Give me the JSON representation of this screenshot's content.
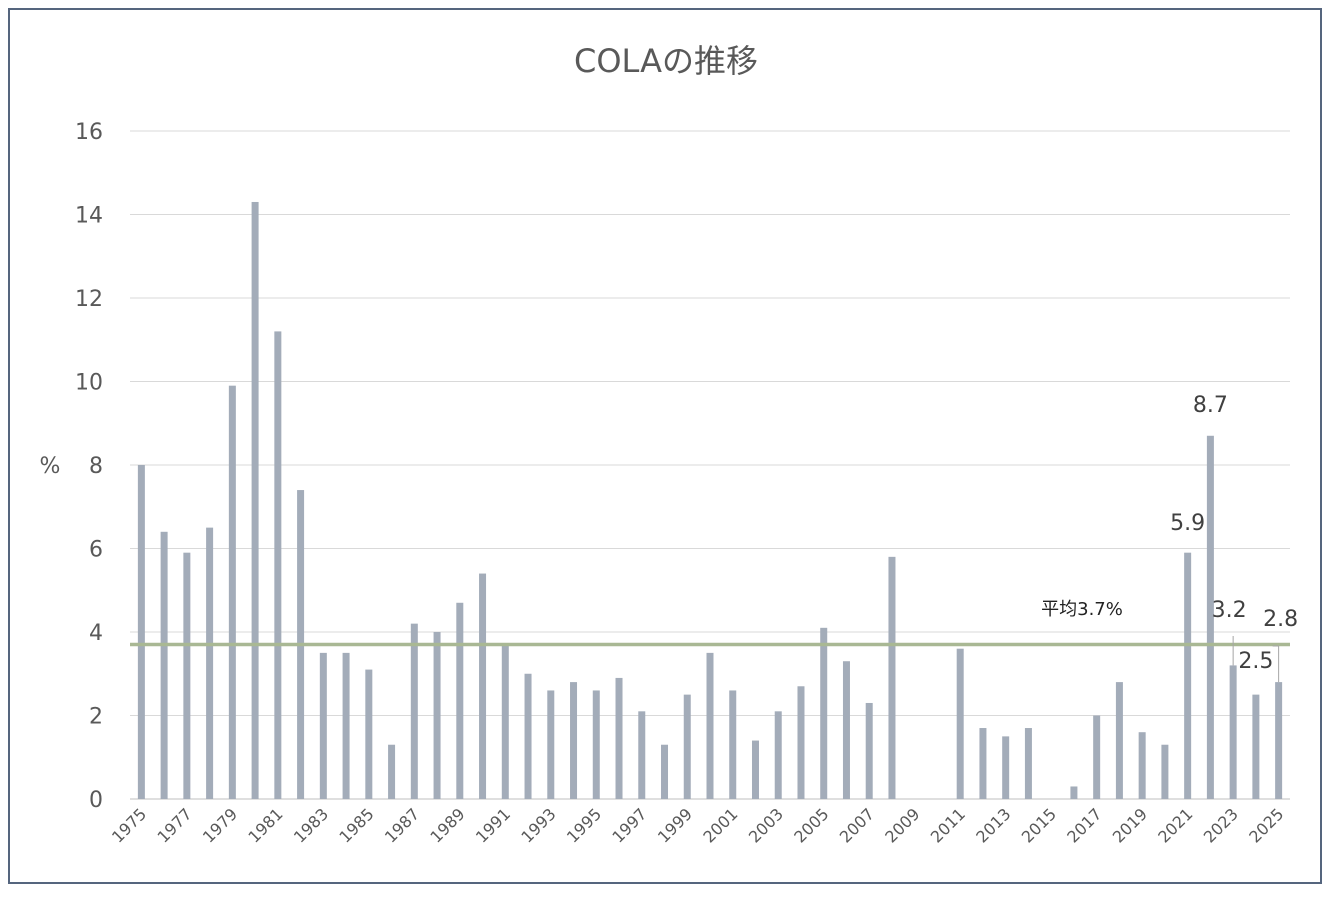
{
  "chart_data": {
    "type": "bar",
    "title": "COLAの推移",
    "ylabel": "%",
    "xlabel": "",
    "ylim": [
      0,
      16
    ],
    "yticks": [
      0,
      2,
      4,
      6,
      8,
      10,
      12,
      14,
      16
    ],
    "grid": true,
    "bar_color": "#a3acb9",
    "average_line": {
      "value": 3.7,
      "label": "平均3.7%",
      "color": "#a9b894"
    },
    "categories": [
      "1975",
      "1976",
      "1977",
      "1978",
      "1979",
      "1980",
      "1981",
      "1982",
      "1983",
      "1984",
      "1985",
      "1986",
      "1987",
      "1988",
      "1989",
      "1990",
      "1991",
      "1992",
      "1993",
      "1994",
      "1995",
      "1996",
      "1997",
      "1998",
      "1999",
      "2000",
      "2001",
      "2002",
      "2003",
      "2004",
      "2005",
      "2006",
      "2007",
      "2008",
      "2009",
      "2010",
      "2011",
      "2012",
      "2013",
      "2014",
      "2015",
      "2016",
      "2017",
      "2018",
      "2019",
      "2020",
      "2021",
      "2022",
      "2023",
      "2024",
      "2025"
    ],
    "tick_labels": [
      "1975",
      "1977",
      "1979",
      "1981",
      "1983",
      "1985",
      "1987",
      "1989",
      "1991",
      "1993",
      "1995",
      "1997",
      "1999",
      "2001",
      "2003",
      "2005",
      "2007",
      "2009",
      "2011",
      "2013",
      "2015",
      "2017",
      "2019",
      "2021",
      "2023",
      "2025"
    ],
    "values": [
      8.0,
      6.4,
      5.9,
      6.5,
      9.9,
      14.3,
      11.2,
      7.4,
      3.5,
      3.5,
      3.1,
      1.3,
      4.2,
      4.0,
      4.7,
      5.4,
      3.7,
      3.0,
      2.6,
      2.8,
      2.6,
      2.9,
      2.1,
      1.3,
      2.5,
      3.5,
      2.6,
      1.4,
      2.1,
      2.7,
      4.1,
      3.3,
      2.3,
      5.8,
      0,
      0,
      3.6,
      1.7,
      1.5,
      1.7,
      0,
      0.3,
      2.0,
      2.8,
      1.6,
      1.3,
      5.9,
      8.7,
      3.2,
      2.5,
      2.8
    ],
    "data_labels": [
      {
        "category": "2021",
        "text": "5.9"
      },
      {
        "category": "2022",
        "text": "8.7"
      },
      {
        "category": "2023",
        "text": "3.2"
      },
      {
        "category": "2024",
        "text": "2.5"
      },
      {
        "category": "2025",
        "text": "2.8"
      }
    ]
  }
}
